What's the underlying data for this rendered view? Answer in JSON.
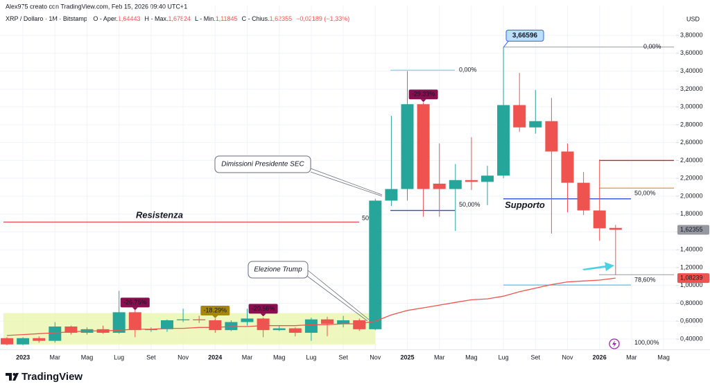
{
  "header": {
    "author": "Alex975 creato con TradingView.com, Feb 15, 2026 09:40 UTC+1",
    "symbol": "XRP / Dollaro · 1M · Bitstamp",
    "ohlc": [
      {
        "prefix": "O - Aper.",
        "value": "1,64443"
      },
      {
        "prefix": "H - Max.",
        "value": "1,67824"
      },
      {
        "prefix": "L - Min.",
        "value": "1,11845"
      },
      {
        "prefix": "C - Chius.",
        "value": "1,62355"
      }
    ],
    "change": "−0,02189 (−1,33%)"
  },
  "footer": {
    "brand": "TradingView"
  },
  "chart_data": {
    "type": "candlestick",
    "axis_unit": "USD",
    "categories": [
      null,
      "2023",
      null,
      "Mar",
      null,
      "Mag",
      null,
      "Lug",
      null,
      "Set",
      null,
      "Nov",
      null,
      "2024",
      null,
      "Mar",
      null,
      "Mag",
      null,
      "Lug",
      null,
      "Set",
      null,
      "Nov",
      null,
      "2025",
      null,
      "Mar",
      null,
      "Mag",
      null,
      "Lug",
      null,
      "Set",
      null,
      "Nov",
      null,
      "2026",
      null,
      "Mar",
      null,
      "Mag"
    ],
    "series": [
      {
        "up_color": "#26a69a",
        "down_color": "#ef5350",
        "open": [
          0.41,
          0.34,
          0.41,
          0.38,
          0.54,
          0.47,
          0.51,
          0.47,
          0.7,
          0.5,
          0.51,
          0.61,
          0.62,
          0.61,
          0.5,
          0.59,
          0.63,
          0.5,
          0.52,
          0.47,
          0.62,
          0.57,
          0.61,
          0.51,
          1.95,
          2.08,
          3.03,
          2.14,
          2.08,
          2.18,
          2.16,
          2.23,
          3.02,
          2.77,
          2.84,
          2.5,
          2.15,
          1.84,
          1.64443,
          null,
          null,
          null
        ],
        "high": [
          0.42,
          0.42,
          0.43,
          0.59,
          0.55,
          0.53,
          0.55,
          0.94,
          0.74,
          0.53,
          0.62,
          0.74,
          0.66,
          0.63,
          0.61,
          0.74,
          0.64,
          0.55,
          0.53,
          0.64,
          0.65,
          0.66,
          0.63,
          1.97,
          2.9,
          3.4,
          3.05,
          2.59,
          2.36,
          2.66,
          2.34,
          3.66596,
          3.38,
          3.19,
          3.1,
          2.59,
          2.27,
          2.41,
          1.67824,
          null,
          null,
          null
        ],
        "low": [
          0.33,
          0.33,
          0.36,
          0.36,
          0.45,
          0.45,
          0.46,
          0.46,
          0.42,
          0.48,
          0.48,
          0.59,
          0.58,
          0.47,
          0.49,
          0.55,
          0.42,
          0.49,
          0.43,
          0.38,
          0.43,
          0.53,
          0.49,
          0.5,
          1.89,
          1.95,
          1.77,
          1.77,
          1.61,
          2.07,
          1.9,
          2.2,
          2.72,
          2.7,
          1.58,
          1.82,
          1.79,
          1.5,
          1.11845,
          null,
          null,
          null
        ],
        "close": [
          0.34,
          0.41,
          0.38,
          0.54,
          0.47,
          0.51,
          0.47,
          0.7,
          0.5,
          0.51,
          0.61,
          0.62,
          0.61,
          0.5,
          0.59,
          0.63,
          0.5,
          0.52,
          0.47,
          0.62,
          0.57,
          0.61,
          0.51,
          1.95,
          2.08,
          3.03,
          2.08,
          2.08,
          2.18,
          2.16,
          2.23,
          3.02,
          2.77,
          2.84,
          2.5,
          2.15,
          1.84,
          1.64,
          1.62355,
          null,
          null,
          null
        ]
      },
      {
        "color": "#ef5350",
        "values": [
          0.44,
          0.45,
          0.46,
          0.47,
          0.48,
          0.49,
          0.49,
          0.5,
          0.51,
          0.51,
          0.52,
          0.52,
          0.53,
          0.53,
          0.54,
          0.54,
          0.55,
          0.55,
          0.55,
          0.56,
          0.56,
          0.57,
          0.57,
          0.6,
          0.67,
          0.72,
          0.75,
          0.78,
          0.81,
          0.84,
          0.85,
          0.88,
          0.93,
          0.97,
          1.01,
          1.04,
          1.05,
          1.06,
          1.08239,
          null,
          null,
          null
        ]
      }
    ],
    "ylim": [
      0.28,
      4.06
    ],
    "yticks": [
      {
        "value": 0.4,
        "label": "0,40000"
      },
      {
        "value": 0.6,
        "label": "0,60000"
      },
      {
        "value": 0.8,
        "label": "0,80000"
      },
      {
        "value": 1.0,
        "label": "1,00000"
      },
      {
        "value": 1.2,
        "label": "1,20000"
      },
      {
        "value": 1.4,
        "label": "1,40000"
      },
      {
        "value": 1.6,
        "label": "1,60000"
      },
      {
        "value": 1.8,
        "label": "1,80000"
      },
      {
        "value": 2.0,
        "label": "2,00000"
      },
      {
        "value": 2.2,
        "label": "2,20000"
      },
      {
        "value": 2.4,
        "label": "2,40000"
      },
      {
        "value": 2.6,
        "label": "2,60000"
      },
      {
        "value": 2.8,
        "label": "2,80000"
      },
      {
        "value": 3.0,
        "label": "3,00000"
      },
      {
        "value": 3.2,
        "label": "3,20000"
      },
      {
        "value": 3.4,
        "label": "3,40000"
      },
      {
        "value": 3.6,
        "label": "3,60000"
      },
      {
        "value": 3.8,
        "label": "3,80000"
      }
    ],
    "grid": true,
    "last_price": {
      "value": 1.62355,
      "label": "1,62355",
      "color": "#9598a1"
    },
    "ma_last": {
      "value": 1.08239,
      "label": "1,08239",
      "color": "#ef5350"
    },
    "high_callout": {
      "value": 3.66596,
      "label": "3,66596"
    },
    "highlight": {
      "from": 0.34,
      "to": 0.69,
      "color": "#e8f5a8"
    },
    "levels": [
      {
        "value": 3.67,
        "color": "#b2b5be",
        "label": "0,00%",
        "label_color": "#c9ccd3"
      },
      {
        "value": 3.41,
        "color": "#80deea",
        "label": "0,00%",
        "label_color": "#b2ebf2"
      },
      {
        "value": 1.84,
        "color": "#2a4bd6",
        "label": "50,00%",
        "label_color": "#2962ff"
      },
      {
        "value": 1.71,
        "color": "#f7525f",
        "label": "Resistenza",
        "label_color": "#f23645"
      },
      {
        "value": 1.75,
        "color": "#f8c5c9",
        "label": "50%",
        "label_color": "#f8c5c9"
      },
      {
        "value": 1.97,
        "color": "#2a4bd6",
        "label": "Supporto",
        "label_color": "#2a4bd6"
      },
      {
        "value": 2.4,
        "color": "#b22833"
      },
      {
        "value": 2.09,
        "color": "#ff9800",
        "label": "50,00%",
        "label_color": "#2962ff"
      },
      {
        "value": 1.12,
        "color": "#b2b5be"
      },
      {
        "value": 1.005,
        "color": "#4fc3f7",
        "label": "78,60%",
        "label_color": "#4aa8d8"
      },
      {
        "value": 0.355,
        "color": "#e0e3eb",
        "label": "100,00%",
        "label_color": "#d1d4dc"
      }
    ],
    "badges": [
      null,
      null,
      null,
      null,
      null,
      null,
      null,
      null,
      {
        "text": "-26.75%",
        "color": "#880e4f"
      },
      null,
      null,
      null,
      null,
      {
        "text": "-18.29%",
        "color": "#a5880a"
      },
      null,
      null,
      {
        "text": "-20.56%",
        "color": "#880e4f"
      },
      null,
      null,
      null,
      null,
      null,
      null,
      null,
      null,
      null,
      {
        "text": "-29.33%",
        "color": "#880e4f"
      },
      null,
      null,
      null,
      null,
      null,
      null,
      null,
      null,
      null,
      null,
      null,
      null,
      null,
      null,
      null
    ],
    "callouts": [
      {
        "text": "Dimissioni Presidente SEC"
      },
      {
        "text": "Elezione Trump"
      }
    ]
  }
}
